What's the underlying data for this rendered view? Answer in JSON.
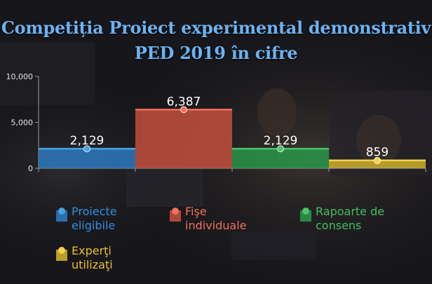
{
  "title": {
    "line1": "Competiția Proiect experimental demonstrativ",
    "line2": "PED 2019 în cifre"
  },
  "chart_data": {
    "type": "bar",
    "categories": [
      "Proiecte eligibile",
      "Fişe individuale",
      "Rapoarte de consens",
      "Experţi utilizaţi"
    ],
    "values": [
      2129,
      6387,
      2129,
      859
    ],
    "value_labels": [
      "2,129",
      "6,387",
      "2,129",
      "859"
    ],
    "colors": [
      "#2d7dc4",
      "#c9523f",
      "#2a9a4a",
      "#d6b52e"
    ],
    "marker_colors": [
      "#4aa3e8",
      "#f2705c",
      "#4cc46a",
      "#f3d34a"
    ],
    "label_colors": [
      "#2e8fe0",
      "#f0705c",
      "#3fbf5f",
      "#e8c12c"
    ],
    "ylim": [
      0,
      10000
    ],
    "yticks": [
      "10,000",
      "5,000",
      "0"
    ],
    "ytick_values": [
      10000,
      5000,
      0
    ],
    "grid": false,
    "legend_placement": "bottom",
    "xlabel": "",
    "ylabel": ""
  }
}
